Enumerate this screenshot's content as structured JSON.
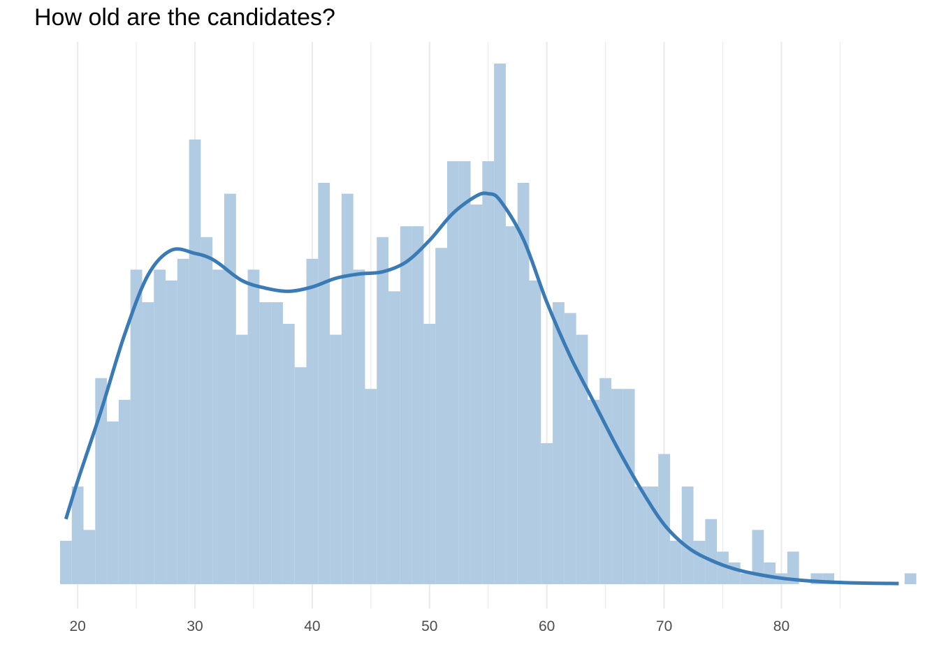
{
  "chart_data": {
    "type": "bar",
    "title": "How old are the candidates?",
    "xlabel": "",
    "ylabel": "",
    "xlim": [
      16.3,
      89.8
    ],
    "x_ticks": [
      20,
      30,
      40,
      50,
      60,
      70,
      80
    ],
    "x_tick_labels": [
      "20",
      "30",
      "40",
      "50",
      "60",
      "70",
      "80"
    ],
    "grid": "vertical",
    "bin_width": 1,
    "bins": [
      {
        "x": 19,
        "count": 4
      },
      {
        "x": 20,
        "count": 9
      },
      {
        "x": 21,
        "count": 5
      },
      {
        "x": 22,
        "count": 19
      },
      {
        "x": 23,
        "count": 15
      },
      {
        "x": 24,
        "count": 17
      },
      {
        "x": 25,
        "count": 29
      },
      {
        "x": 26,
        "count": 26
      },
      {
        "x": 27,
        "count": 29
      },
      {
        "x": 28,
        "count": 28
      },
      {
        "x": 29,
        "count": 30
      },
      {
        "x": 30,
        "count": 41
      },
      {
        "x": 31,
        "count": 32
      },
      {
        "x": 32,
        "count": 29
      },
      {
        "x": 33,
        "count": 36
      },
      {
        "x": 34,
        "count": 23
      },
      {
        "x": 35,
        "count": 29
      },
      {
        "x": 36,
        "count": 26
      },
      {
        "x": 37,
        "count": 26
      },
      {
        "x": 38,
        "count": 24
      },
      {
        "x": 39,
        "count": 20
      },
      {
        "x": 40,
        "count": 30
      },
      {
        "x": 41,
        "count": 37
      },
      {
        "x": 42,
        "count": 23
      },
      {
        "x": 43,
        "count": 36
      },
      {
        "x": 44,
        "count": 29
      },
      {
        "x": 45,
        "count": 18
      },
      {
        "x": 46,
        "count": 32
      },
      {
        "x": 47,
        "count": 27
      },
      {
        "x": 48,
        "count": 33
      },
      {
        "x": 49,
        "count": 33
      },
      {
        "x": 50,
        "count": 24
      },
      {
        "x": 51,
        "count": 31
      },
      {
        "x": 52,
        "count": 39
      },
      {
        "x": 53,
        "count": 39
      },
      {
        "x": 54,
        "count": 35
      },
      {
        "x": 55,
        "count": 39
      },
      {
        "x": 56,
        "count": 48
      },
      {
        "x": 57,
        "count": 33
      },
      {
        "x": 58,
        "count": 37
      },
      {
        "x": 59,
        "count": 28
      },
      {
        "x": 60,
        "count": 13
      },
      {
        "x": 61,
        "count": 26
      },
      {
        "x": 62,
        "count": 25
      },
      {
        "x": 63,
        "count": 23
      },
      {
        "x": 64,
        "count": 17
      },
      {
        "x": 65,
        "count": 19
      },
      {
        "x": 66,
        "count": 18
      },
      {
        "x": 67,
        "count": 18
      },
      {
        "x": 68,
        "count": 9
      },
      {
        "x": 69,
        "count": 9
      },
      {
        "x": 70,
        "count": 12
      },
      {
        "x": 71,
        "count": 4
      },
      {
        "x": 72,
        "count": 9
      },
      {
        "x": 73,
        "count": 4
      },
      {
        "x": 74,
        "count": 6
      },
      {
        "x": 75,
        "count": 3
      },
      {
        "x": 76,
        "count": 2
      },
      {
        "x": 77,
        "count": 1
      },
      {
        "x": 78,
        "count": 5
      },
      {
        "x": 79,
        "count": 2
      },
      {
        "x": 80,
        "count": 1
      },
      {
        "x": 81,
        "count": 3
      },
      {
        "x": 83,
        "count": 1
      },
      {
        "x": 84,
        "count": 1
      },
      {
        "x": 91,
        "count": 1
      }
    ],
    "ylim": [
      0,
      50
    ],
    "density_curve": {
      "x": [
        19,
        20,
        22,
        24,
        26,
        28,
        30,
        31,
        32,
        34,
        36,
        38,
        40,
        42,
        44,
        46,
        48,
        50,
        52,
        54,
        55,
        56,
        58,
        60,
        62,
        64,
        66,
        68,
        70,
        72,
        74,
        76,
        78,
        80,
        82,
        84,
        86,
        88,
        90
      ],
      "y": [
        6,
        9.5,
        16,
        23,
        28.5,
        30.8,
        30.5,
        30.2,
        29.6,
        28,
        27.3,
        27,
        27.4,
        28.2,
        28.6,
        28.8,
        29.7,
        31.7,
        34.2,
        35.8,
        36,
        35.4,
        31.8,
        26,
        21,
        16.8,
        12.6,
        8.8,
        5.5,
        3.4,
        2.2,
        1.4,
        0.9,
        0.55,
        0.33,
        0.2,
        0.12,
        0.08,
        0.06
      ]
    },
    "colors": {
      "bar_fill": "#b0cbe2",
      "curve": "#3a7bb6",
      "grid": "#ebebeb",
      "tick_text": "#4d4d4d",
      "title_text": "#000000"
    }
  }
}
